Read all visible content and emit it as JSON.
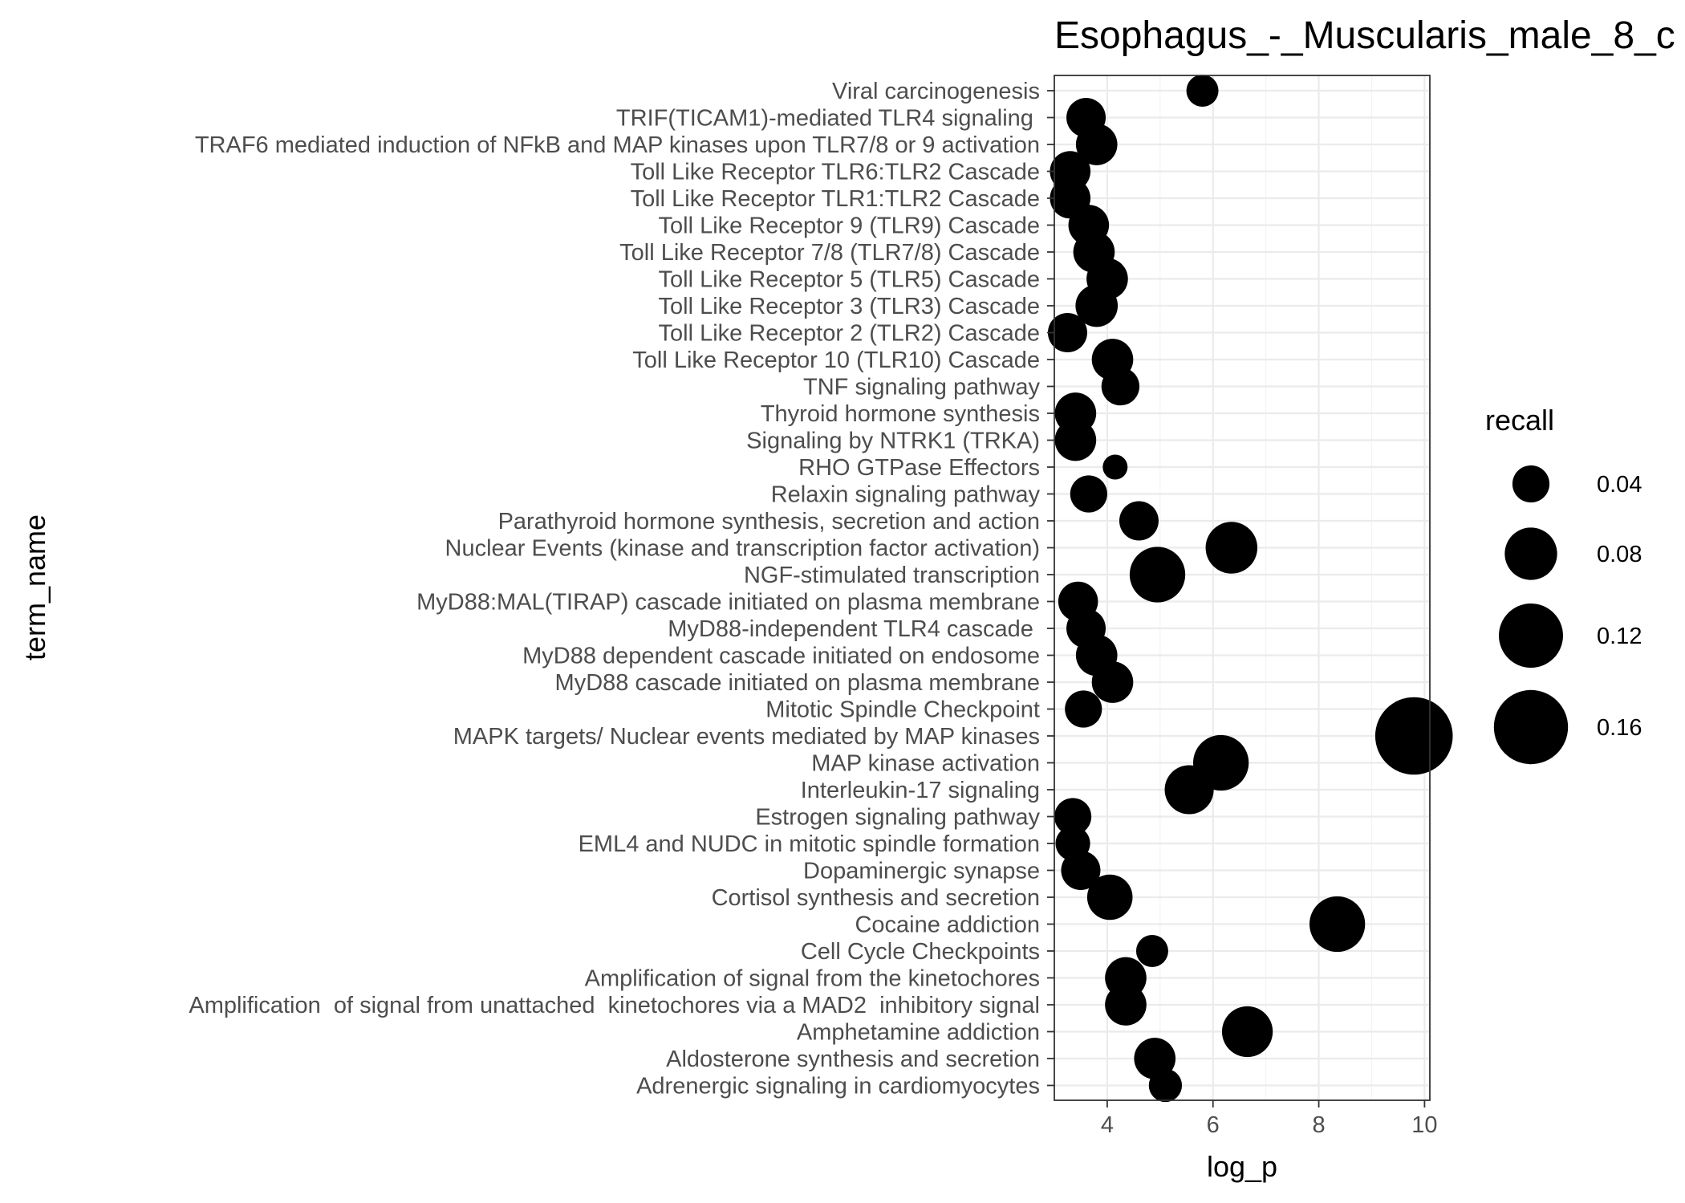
{
  "chart_data": {
    "type": "scatter",
    "title": "Esophagus_-_Muscularis_male_8_c",
    "xlabel": "log_p",
    "ylabel": "term_name",
    "xlim": [
      3.0,
      10.1
    ],
    "xticks": [
      4,
      6,
      8,
      10
    ],
    "grid": true,
    "legend": {
      "title": "recall",
      "position": "right",
      "values": [
        0.04,
        0.08,
        0.12,
        0.16
      ],
      "labels": [
        "0.04",
        "0.08",
        "0.12",
        "0.16"
      ]
    },
    "point_color": "#000000",
    "points": [
      {
        "term": "Viral carcinogenesis",
        "log_p": 5.8,
        "recall": 0.03
      },
      {
        "term": "TRIF(TICAM1)-mediated TLR4 signaling ",
        "log_p": 3.6,
        "recall": 0.045
      },
      {
        "term": "TRAF6 mediated induction of NFkB and MAP kinases upon TLR7/8 or 9 activation",
        "log_p": 3.8,
        "recall": 0.05
      },
      {
        "term": "Toll Like Receptor TLR6:TLR2 Cascade",
        "log_p": 3.3,
        "recall": 0.048
      },
      {
        "term": "Toll Like Receptor TLR1:TLR2 Cascade",
        "log_p": 3.3,
        "recall": 0.048
      },
      {
        "term": "Toll Like Receptor 9 (TLR9) Cascade",
        "log_p": 3.65,
        "recall": 0.048
      },
      {
        "term": "Toll Like Receptor 7/8 (TLR7/8) Cascade",
        "log_p": 3.75,
        "recall": 0.05
      },
      {
        "term": "Toll Like Receptor 5 (TLR5) Cascade",
        "log_p": 4.0,
        "recall": 0.05
      },
      {
        "term": "Toll Like Receptor 3 (TLR3) Cascade",
        "log_p": 3.8,
        "recall": 0.052
      },
      {
        "term": "Toll Like Receptor 2 (TLR2) Cascade",
        "log_p": 3.25,
        "recall": 0.045
      },
      {
        "term": "Toll Like Receptor 10 (TLR10) Cascade",
        "log_p": 4.1,
        "recall": 0.05
      },
      {
        "term": "TNF signaling pathway",
        "log_p": 4.25,
        "recall": 0.042
      },
      {
        "term": "Thyroid hormone synthesis",
        "log_p": 3.4,
        "recall": 0.05
      },
      {
        "term": "Signaling by NTRK1 (TRKA)",
        "log_p": 3.4,
        "recall": 0.05
      },
      {
        "term": "RHO GTPase Effectors",
        "log_p": 4.15,
        "recall": 0.018
      },
      {
        "term": "Relaxin signaling pathway",
        "log_p": 3.65,
        "recall": 0.04
      },
      {
        "term": "Parathyroid hormone synthesis, secretion and action",
        "log_p": 4.6,
        "recall": 0.045
      },
      {
        "term": "Nuclear Events (kinase and transcription factor activation)",
        "log_p": 6.35,
        "recall": 0.078
      },
      {
        "term": "NGF-stimulated transcription",
        "log_p": 4.95,
        "recall": 0.09
      },
      {
        "term": "MyD88:MAL(TIRAP) cascade initiated on plasma membrane",
        "log_p": 3.45,
        "recall": 0.046
      },
      {
        "term": "MyD88-independent TLR4 cascade ",
        "log_p": 3.6,
        "recall": 0.045
      },
      {
        "term": "MyD88 dependent cascade initiated on endosome",
        "log_p": 3.8,
        "recall": 0.05
      },
      {
        "term": "MyD88 cascade initiated on plasma membrane",
        "log_p": 4.1,
        "recall": 0.05
      },
      {
        "term": "Mitotic Spindle Checkpoint",
        "log_p": 3.55,
        "recall": 0.04
      },
      {
        "term": "MAPK targets/ Nuclear events mediated by MAP kinases",
        "log_p": 9.8,
        "recall": 0.175
      },
      {
        "term": "MAP kinase activation",
        "log_p": 6.15,
        "recall": 0.09
      },
      {
        "term": "Interleukin-17 signaling",
        "log_p": 5.55,
        "recall": 0.07
      },
      {
        "term": "Estrogen signaling pathway",
        "log_p": 3.35,
        "recall": 0.04
      },
      {
        "term": "EML4 and NUDC in mitotic spindle formation",
        "log_p": 3.35,
        "recall": 0.035
      },
      {
        "term": "Dopaminergic synapse",
        "log_p": 3.5,
        "recall": 0.045
      },
      {
        "term": "Cortisol synthesis and secretion",
        "log_p": 4.05,
        "recall": 0.06
      },
      {
        "term": "Cocaine addiction",
        "log_p": 8.35,
        "recall": 0.09
      },
      {
        "term": "Cell Cycle Checkpoints",
        "log_p": 4.85,
        "recall": 0.03
      },
      {
        "term": "Amplification of signal from the kinetochores",
        "log_p": 4.35,
        "recall": 0.05
      },
      {
        "term": "Amplification  of signal from unattached  kinetochores via a MAD2  inhibitory signal",
        "log_p": 4.35,
        "recall": 0.05
      },
      {
        "term": "Amphetamine addiction",
        "log_p": 6.65,
        "recall": 0.075
      },
      {
        "term": "Aldosterone synthesis and secretion",
        "log_p": 4.9,
        "recall": 0.05
      },
      {
        "term": "Adrenergic signaling in cardiomyocytes",
        "log_p": 5.1,
        "recall": 0.032
      }
    ]
  }
}
